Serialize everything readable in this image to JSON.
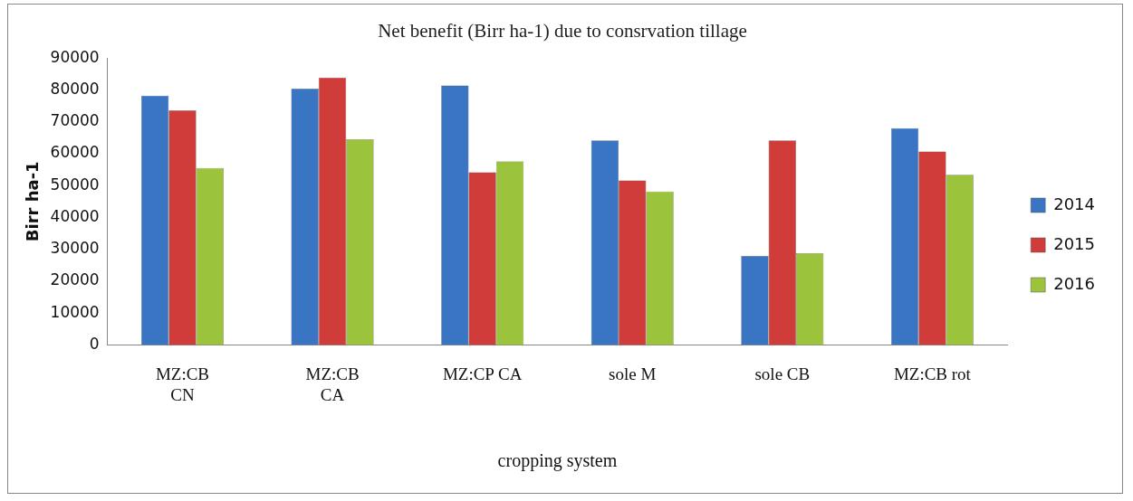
{
  "chart_data": {
    "type": "bar",
    "title": "Net benefit (Birr ha-1) due to consrvation tillage",
    "xlabel": "cropping system",
    "ylabel": "Birr ha-1",
    "categories": [
      "MZ:CB CN",
      "MZ:CB CA",
      "MZ:CP CA",
      "sole M",
      "sole CB",
      "MZ:CB rot"
    ],
    "series": [
      {
        "name": "2014",
        "color": "#3a75c4",
        "values": [
          78200,
          80400,
          81400,
          64200,
          27900,
          68000
        ]
      },
      {
        "name": "2015",
        "color": "#d03c3a",
        "values": [
          73600,
          83900,
          54200,
          51600,
          64200,
          60700
        ]
      },
      {
        "name": "2016",
        "color": "#9bc33c",
        "values": [
          55500,
          64500,
          57600,
          48100,
          28800,
          53400
        ]
      }
    ],
    "ylim": [
      0,
      90000
    ],
    "yticks": [
      0,
      10000,
      20000,
      30000,
      40000,
      50000,
      60000,
      70000,
      80000,
      90000
    ],
    "grid": false,
    "legend": "right"
  }
}
